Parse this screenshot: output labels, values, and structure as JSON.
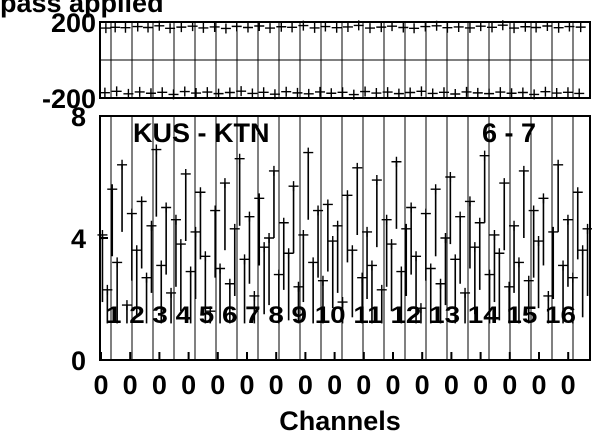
{
  "chart_data": [
    {
      "type": "scatter",
      "panel": "phase",
      "title": "pass applied",
      "ylim": [
        -200,
        200
      ],
      "yticks": [
        "200",
        "-200"
      ],
      "series": [
        {
          "points": [
            [
              0.012,
              168
            ],
            [
              0.031,
              172
            ],
            [
              0.052,
              170
            ],
            [
              0.077,
              176
            ],
            [
              0.098,
              171
            ],
            [
              0.121,
              180
            ],
            [
              0.143,
              167
            ],
            [
              0.166,
              173
            ],
            [
              0.189,
              178
            ],
            [
              0.211,
              169
            ],
            [
              0.234,
              174
            ],
            [
              0.257,
              166
            ],
            [
              0.279,
              177
            ],
            [
              0.302,
              171
            ],
            [
              0.325,
              179
            ],
            [
              0.347,
              168
            ],
            [
              0.37,
              175
            ],
            [
              0.392,
              172
            ],
            [
              0.415,
              181
            ],
            [
              0.438,
              169
            ],
            [
              0.46,
              176
            ],
            [
              0.483,
              170
            ],
            [
              0.506,
              174
            ],
            [
              0.528,
              182
            ],
            [
              0.551,
              168
            ],
            [
              0.574,
              173
            ],
            [
              0.596,
              178
            ],
            [
              0.619,
              171
            ],
            [
              0.641,
              167
            ],
            [
              0.664,
              176
            ],
            [
              0.687,
              180
            ],
            [
              0.709,
              170
            ],
            [
              0.732,
              174
            ],
            [
              0.755,
              169
            ],
            [
              0.777,
              178
            ],
            [
              0.8,
              172
            ],
            [
              0.822,
              183
            ],
            [
              0.845,
              168
            ],
            [
              0.868,
              175
            ],
            [
              0.89,
              171
            ],
            [
              0.913,
              179
            ],
            [
              0.936,
              170
            ],
            [
              0.958,
              176
            ],
            [
              0.981,
              173
            ],
            [
              0.01,
              -172
            ],
            [
              0.034,
              -165
            ],
            [
              0.058,
              -178
            ],
            [
              0.081,
              -168
            ],
            [
              0.104,
              -175
            ],
            [
              0.127,
              -170
            ],
            [
              0.15,
              -181
            ],
            [
              0.173,
              -166
            ],
            [
              0.196,
              -174
            ],
            [
              0.219,
              -169
            ],
            [
              0.242,
              -177
            ],
            [
              0.265,
              -171
            ],
            [
              0.288,
              -164
            ],
            [
              0.311,
              -176
            ],
            [
              0.334,
              -170
            ],
            [
              0.357,
              -180
            ],
            [
              0.38,
              -167
            ],
            [
              0.403,
              -173
            ],
            [
              0.426,
              -178
            ],
            [
              0.449,
              -168
            ],
            [
              0.472,
              -175
            ],
            [
              0.495,
              -170
            ],
            [
              0.518,
              -182
            ],
            [
              0.541,
              -166
            ],
            [
              0.564,
              -174
            ],
            [
              0.587,
              -169
            ],
            [
              0.61,
              -177
            ],
            [
              0.633,
              -171
            ],
            [
              0.656,
              -165
            ],
            [
              0.679,
              -176
            ],
            [
              0.702,
              -170
            ],
            [
              0.725,
              -179
            ],
            [
              0.748,
              -168
            ],
            [
              0.771,
              -173
            ],
            [
              0.794,
              -177
            ],
            [
              0.817,
              -169
            ],
            [
              0.84,
              -175
            ],
            [
              0.863,
              -171
            ],
            [
              0.886,
              -181
            ],
            [
              0.909,
              -167
            ],
            [
              0.932,
              -174
            ],
            [
              0.955,
              -170
            ],
            [
              0.978,
              -176
            ]
          ]
        }
      ]
    },
    {
      "type": "scatter",
      "panel": "amplitude",
      "ylim": [
        0,
        8
      ],
      "yticks": [
        "8",
        "4",
        "0"
      ],
      "xlabel": "Channels",
      "xtick_labels": [
        "0",
        "0",
        "0",
        "0",
        "0",
        "0",
        "0",
        "0",
        "0",
        "0",
        "0",
        "0",
        "0",
        "0",
        "0",
        "0",
        "0"
      ],
      "annotations": {
        "baseline": "KUS - KTN",
        "spectral_window": "6 - 7",
        "row_numbers": "1 2 3 4 5 6 7 8 9 10 11 12 13 14 15 16"
      },
      "series": [
        {
          "points": [
            [
              0.005,
              4.1
            ],
            [
              0.015,
              2.3
            ],
            [
              0.025,
              5.6
            ],
            [
              0.035,
              3.2
            ],
            [
              0.045,
              6.4
            ],
            [
              0.055,
              1.8
            ],
            [
              0.065,
              4.8
            ],
            [
              0.075,
              3.6
            ],
            [
              0.085,
              5.2
            ],
            [
              0.095,
              2.7
            ],
            [
              0.105,
              4.4
            ],
            [
              0.115,
              6.9
            ],
            [
              0.125,
              3.1
            ],
            [
              0.135,
              5.0
            ],
            [
              0.145,
              2.2
            ],
            [
              0.155,
              4.6
            ],
            [
              0.165,
              3.8
            ],
            [
              0.175,
              6.1
            ],
            [
              0.185,
              2.9
            ],
            [
              0.195,
              4.2
            ],
            [
              0.205,
              5.5
            ],
            [
              0.215,
              3.4
            ],
            [
              0.225,
              1.6
            ],
            [
              0.235,
              4.9
            ],
            [
              0.245,
              3.0
            ],
            [
              0.255,
              5.8
            ],
            [
              0.265,
              2.5
            ],
            [
              0.275,
              4.3
            ],
            [
              0.285,
              6.6
            ],
            [
              0.295,
              3.3
            ],
            [
              0.305,
              4.7
            ],
            [
              0.315,
              2.1
            ],
            [
              0.325,
              5.3
            ],
            [
              0.335,
              3.7
            ],
            [
              0.345,
              4.0
            ],
            [
              0.355,
              6.2
            ],
            [
              0.365,
              2.8
            ],
            [
              0.375,
              4.5
            ],
            [
              0.385,
              3.5
            ],
            [
              0.395,
              5.7
            ],
            [
              0.405,
              2.4
            ],
            [
              0.415,
              4.1
            ],
            [
              0.425,
              6.8
            ],
            [
              0.435,
              3.2
            ],
            [
              0.445,
              4.9
            ],
            [
              0.455,
              2.6
            ],
            [
              0.465,
              5.1
            ],
            [
              0.475,
              3.9
            ],
            [
              0.485,
              4.4
            ],
            [
              0.495,
              1.9
            ],
            [
              0.505,
              5.4
            ],
            [
              0.515,
              3.6
            ],
            [
              0.525,
              6.3
            ],
            [
              0.535,
              2.7
            ],
            [
              0.545,
              4.2
            ],
            [
              0.555,
              3.1
            ],
            [
              0.565,
              5.9
            ],
            [
              0.575,
              2.3
            ],
            [
              0.585,
              4.6
            ],
            [
              0.595,
              3.8
            ],
            [
              0.605,
              6.5
            ],
            [
              0.615,
              2.9
            ],
            [
              0.625,
              4.3
            ],
            [
              0.635,
              5.0
            ],
            [
              0.645,
              3.4
            ],
            [
              0.655,
              1.7
            ],
            [
              0.665,
              4.8
            ],
            [
              0.675,
              3.0
            ],
            [
              0.685,
              5.6
            ],
            [
              0.695,
              2.5
            ],
            [
              0.705,
              4.0
            ],
            [
              0.715,
              6.0
            ],
            [
              0.725,
              3.3
            ],
            [
              0.735,
              4.7
            ],
            [
              0.745,
              2.2
            ],
            [
              0.755,
              5.2
            ],
            [
              0.765,
              3.7
            ],
            [
              0.775,
              4.5
            ],
            [
              0.785,
              6.7
            ],
            [
              0.795,
              2.8
            ],
            [
              0.805,
              4.1
            ],
            [
              0.815,
              3.5
            ],
            [
              0.825,
              5.8
            ],
            [
              0.835,
              2.4
            ],
            [
              0.845,
              4.4
            ],
            [
              0.855,
              3.2
            ],
            [
              0.865,
              6.2
            ],
            [
              0.875,
              2.6
            ],
            [
              0.885,
              4.9
            ],
            [
              0.895,
              3.9
            ],
            [
              0.905,
              5.3
            ],
            [
              0.915,
              2.1
            ],
            [
              0.925,
              4.2
            ],
            [
              0.935,
              6.4
            ],
            [
              0.945,
              3.1
            ],
            [
              0.955,
              4.6
            ],
            [
              0.965,
              2.7
            ],
            [
              0.975,
              5.5
            ],
            [
              0.985,
              3.6
            ],
            [
              0.995,
              4.3
            ]
          ]
        }
      ]
    }
  ]
}
